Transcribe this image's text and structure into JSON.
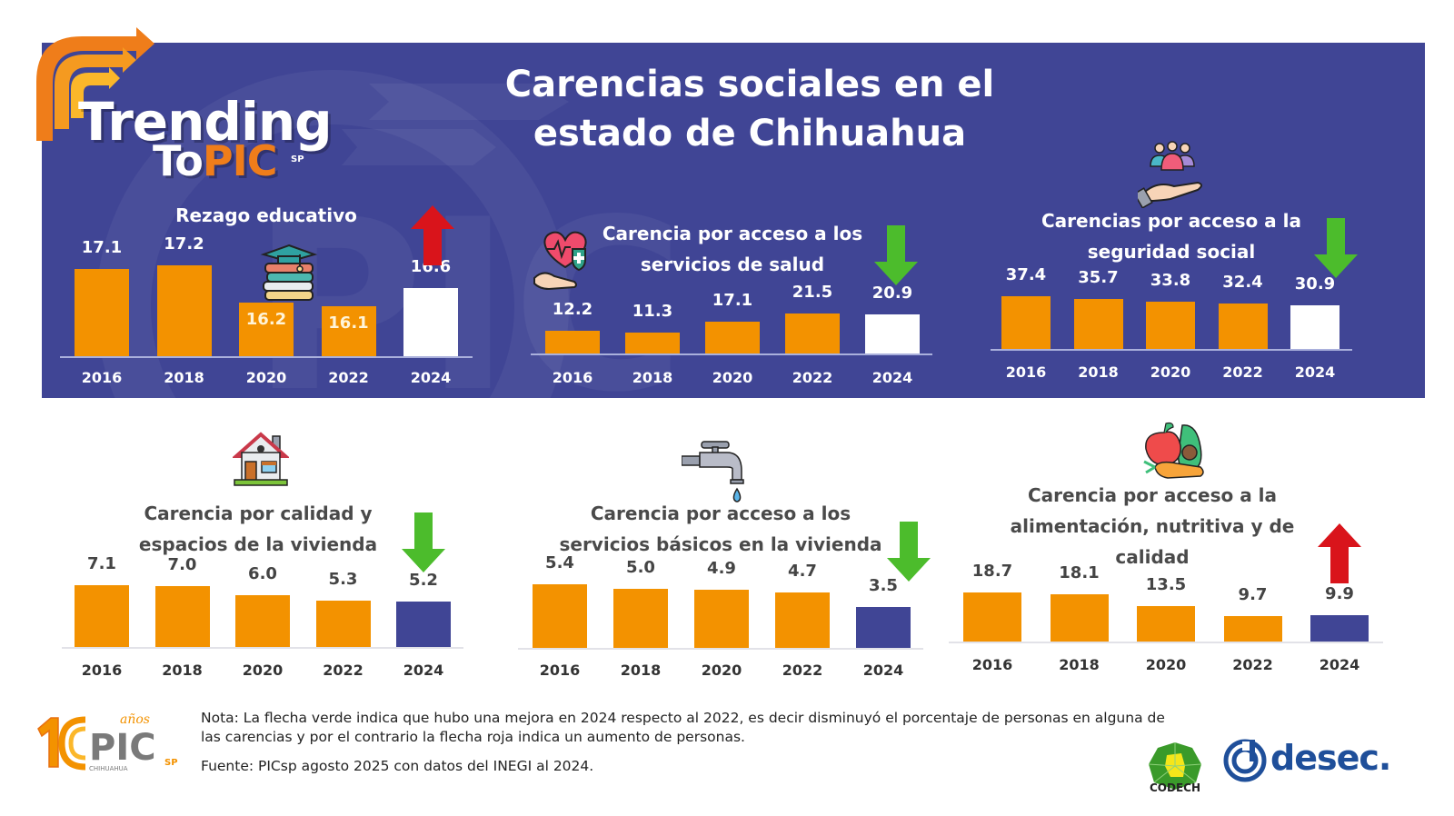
{
  "header": {
    "logo": {
      "line1": "Trending",
      "line2_to": "To",
      "line2_pic": "PIC",
      "sup": "SP"
    },
    "title_line1": "Carencias sociales en el",
    "title_line2": "estado de Chihuahua"
  },
  "colors": {
    "banner": "#404595",
    "bar_orange": "#f39200",
    "bar_white": "#ffffff",
    "bar_navy": "#404595",
    "arrow_green": "#4cbc2c",
    "arrow_red": "#d9141b",
    "logo_orange": "#ef7d1a",
    "desec_blue": "#1f4f9a",
    "codech_green": "#3a9a2a"
  },
  "chart_data": [
    {
      "id": "rezago",
      "type": "bar",
      "title": "Rezago educativo",
      "title_lines": [
        "Rezago educativo"
      ],
      "icon": "graduation-books-icon",
      "trend": "up",
      "categories": [
        "2016",
        "2018",
        "2020",
        "2022",
        "2024"
      ],
      "values": [
        17.1,
        17.2,
        16.2,
        16.1,
        16.6
      ],
      "labels": [
        "17.1",
        "17.2",
        "16.2",
        "16.1",
        "16.6"
      ],
      "ylim": [
        15.6,
        17.2
      ],
      "highlight_last": "white",
      "xlabel": "",
      "ylabel": ""
    },
    {
      "id": "salud",
      "type": "bar",
      "title": "Carencia por acceso a los servicios de salud",
      "title_lines": [
        "Carencia por acceso a los",
        "servicios de salud"
      ],
      "icon": "health-heart-hand-icon",
      "trend": "down",
      "categories": [
        "2016",
        "2018",
        "2020",
        "2022",
        "2024"
      ],
      "values": [
        12.2,
        11.3,
        17.1,
        21.5,
        20.9
      ],
      "labels": [
        "12.2",
        "11.3",
        "17.1",
        "21.5",
        "20.9"
      ],
      "ylim": [
        9.0,
        21.5
      ],
      "highlight_last": "white",
      "xlabel": "",
      "ylabel": ""
    },
    {
      "id": "seguridad",
      "type": "bar",
      "title": "Carencias por acceso a la seguridad social",
      "title_lines": [
        "Carencias por acceso a la",
        "seguridad social"
      ],
      "icon": "people-hand-icon",
      "trend": "down",
      "categories": [
        "2016",
        "2018",
        "2020",
        "2022",
        "2024"
      ],
      "values": [
        37.4,
        35.7,
        33.8,
        32.4,
        30.9
      ],
      "labels": [
        "37.4",
        "35.7",
        "33.8",
        "32.4",
        "30.9"
      ],
      "ylim": [
        0,
        37.4
      ],
      "highlight_last": "white",
      "xlabel": "",
      "ylabel": ""
    },
    {
      "id": "vivienda",
      "type": "bar",
      "title": "Carencia por calidad y espacios de la vivienda",
      "title_lines": [
        "Carencia por calidad y",
        "espacios de la vivienda"
      ],
      "icon": "house-icon",
      "trend": "down",
      "categories": [
        "2016",
        "2018",
        "2020",
        "2022",
        "2024"
      ],
      "values": [
        7.1,
        7.0,
        6.0,
        5.3,
        5.2
      ],
      "labels": [
        "7.1",
        "7.0",
        "6.0",
        "5.3",
        "5.2"
      ],
      "ylim": [
        0,
        7.1
      ],
      "highlight_last": "navy",
      "xlabel": "",
      "ylabel": ""
    },
    {
      "id": "basicos",
      "type": "bar",
      "title": "Carencia por acceso a los servicios básicos en la vivienda",
      "title_lines": [
        "Carencia por acceso a los",
        "servicios básicos en la vivienda"
      ],
      "icon": "water-tap-icon",
      "trend": "down",
      "categories": [
        "2016",
        "2018",
        "2020",
        "2022",
        "2024"
      ],
      "values": [
        5.4,
        5.0,
        4.9,
        4.7,
        3.5
      ],
      "labels": [
        "5.4",
        "5.0",
        "4.9",
        "4.7",
        "3.5"
      ],
      "ylim": [
        0,
        5.4
      ],
      "highlight_last": "navy",
      "xlabel": "",
      "ylabel": ""
    },
    {
      "id": "alimentacion",
      "type": "bar",
      "title": "Carencia por acceso a la alimentación, nutritiva y de calidad",
      "title_lines": [
        "Carencia por acceso a la",
        "alimentación, nutritiva y de",
        "calidad"
      ],
      "icon": "fruits-vegetables-icon",
      "trend": "up",
      "categories": [
        "2016",
        "2018",
        "2020",
        "2022",
        "2024"
      ],
      "values": [
        18.7,
        18.1,
        13.5,
        9.7,
        9.9
      ],
      "labels": [
        "18.7",
        "18.1",
        "13.5",
        "9.7",
        "9.9"
      ],
      "ylim": [
        0,
        18.7
      ],
      "highlight_last": "navy",
      "xlabel": "",
      "ylabel": ""
    }
  ],
  "footer": {
    "pic_logo": {
      "years": "10",
      "anos": "años",
      "name": "PIC",
      "sup": "SP",
      "region": "CHIHUAHUA"
    },
    "note": "Nota: La flecha verde indica que hubo una mejora en 2024 respecto al 2022, es decir disminuyó el porcentaje de personas en alguna de las carencias y por el contrario la flecha roja indica un aumento de personas.",
    "source": "Fuente: PICsp agosto 2025 con datos del INEGI al 2024.",
    "codech_label": "CODECH",
    "desec_label": "desec."
  }
}
